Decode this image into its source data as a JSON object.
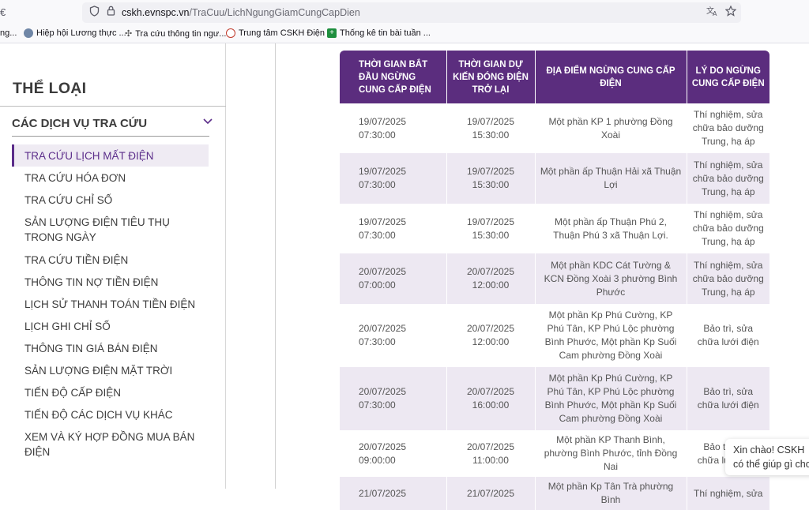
{
  "browser": {
    "back_fragment": "€",
    "url_host": "cskh.evnspc.vn",
    "url_path": "/TraCuu/LichNgungGiamCungCapDien",
    "bookmarks": [
      {
        "label": "ng...",
        "icon": "bookmark-icon"
      },
      {
        "label": "Hiệp hội Lương thực ...",
        "icon": "globe-icon"
      },
      {
        "label": "Tra cứu thông tin ngư...",
        "icon": "gear-icon"
      },
      {
        "label": "Trung tâm CSKH Điện ...",
        "icon": "evn-icon"
      },
      {
        "label": "Thống kê tin bài tuần ...",
        "icon": "sheet-icon"
      }
    ]
  },
  "sidebar": {
    "heading": "THỂ LOẠI",
    "group_label": "CÁC DỊCH VỤ TRA CỨU",
    "items": [
      {
        "label": "TRA CỨU LỊCH MẤT ĐIỆN",
        "active": true
      },
      {
        "label": "TRA CỨU HÓA ĐƠN"
      },
      {
        "label": "TRA CỨU CHỈ SỐ"
      },
      {
        "label": "SẢN LƯỢNG ĐIỆN TIÊU THỤ TRONG NGÀY"
      },
      {
        "label": "TRA CỨU TIỀN ĐIỆN"
      },
      {
        "label": "THÔNG TIN NỢ TIỀN ĐIỆN"
      },
      {
        "label": "LỊCH SỬ THANH TOÁN TIỀN ĐIỆN"
      },
      {
        "label": "LỊCH GHI CHỈ SỐ"
      },
      {
        "label": "THÔNG TIN GIÁ BÁN ĐIỆN"
      },
      {
        "label": "SẢN LƯỢNG ĐIỆN MẶT TRỜI"
      },
      {
        "label": "TIẾN ĐỘ CẤP ĐIỆN"
      },
      {
        "label": "TIẾN ĐỘ CÁC DỊCH VỤ KHÁC"
      },
      {
        "label": "XEM VÀ KÝ HỢP ĐỒNG MUA BÁN ĐIỆN"
      }
    ]
  },
  "table": {
    "headers": [
      "THỜI GIAN BẮT ĐẦU NGỪNG CUNG CẤP ĐIỆN",
      "THỜI GIAN DỰ KIẾN ĐÓNG ĐIỆN TRỞ LẠI",
      "ĐỊA ĐIỂM NGỪNG CUNG CẤP ĐIỆN",
      "LÝ DO NGỪNG CUNG CẤP ĐIỆN"
    ],
    "rows": [
      {
        "start_date": "19/07/2025",
        "start_time": "07:30:00",
        "end_date": "19/07/2025",
        "end_time": "15:30:00",
        "location": "Một phần KP 1 phường Đồng Xoài",
        "reason": "Thí nghiệm, sửa chữa bảo dưỡng Trung, hạ áp"
      },
      {
        "start_date": "19/07/2025",
        "start_time": "07:30:00",
        "end_date": "19/07/2025",
        "end_time": "15:30:00",
        "location": "Một phần ấp Thuận Hải xã Thuận Lợi",
        "reason": "Thí nghiệm, sửa chữa bảo dưỡng Trung, hạ áp"
      },
      {
        "start_date": "19/07/2025",
        "start_time": "07:30:00",
        "end_date": "19/07/2025",
        "end_time": "15:30:00",
        "location": "Một phần ấp Thuận Phú 2, Thuận Phú 3 xã Thuận Lợi.",
        "reason": "Thí nghiệm, sửa chữa bảo dưỡng Trung, hạ áp"
      },
      {
        "start_date": "20/07/2025",
        "start_time": "07:00:00",
        "end_date": "20/07/2025",
        "end_time": "12:00:00",
        "location": "Một phần KDC Cát Tường & KCN Đồng Xoài 3 phường Bình Phước",
        "reason": "Thí nghiệm, sửa chữa bảo dưỡng Trung, hạ áp"
      },
      {
        "start_date": "20/07/2025",
        "start_time": "07:30:00",
        "end_date": "20/07/2025",
        "end_time": "12:00:00",
        "location": "Một phần Kp Phú Cường, KP Phú Tân, KP Phú Lộc phường Bình Phước, Một phần Kp Suối Cam phường Đồng Xoài",
        "reason": "Bảo trì, sửa chữa lưới điện"
      },
      {
        "start_date": "20/07/2025",
        "start_time": "07:30:00",
        "end_date": "20/07/2025",
        "end_time": "16:00:00",
        "location": "Một phần Kp Phú Cường, KP Phú Tân, KP Phú Lộc phường Bình Phước, Một phần Kp Suối Cam phường Đồng Xoài",
        "reason": "Bảo trì, sửa chữa lưới điện"
      },
      {
        "start_date": "20/07/2025",
        "start_time": "09:00:00",
        "end_date": "20/07/2025",
        "end_time": "11:00:00",
        "location": "Một phần KP Thanh Bình, phường Bình Phước, tỉnh Đồng Nai",
        "reason": "Bảo trì, sửa chữa lưới điện"
      },
      {
        "start_date": "21/07/2025",
        "start_time": "",
        "end_date": "21/07/2025",
        "end_time": "",
        "location": "Một phần Kp Tân Trà phường Bình",
        "reason": "Thí nghiệm, sửa"
      }
    ]
  },
  "chat": {
    "line1": "Xin chào! CSKH",
    "line2": "có thể giúp gì cho"
  },
  "colors": {
    "accent": "#5b2d7e",
    "stripe": "#ede8f2"
  }
}
